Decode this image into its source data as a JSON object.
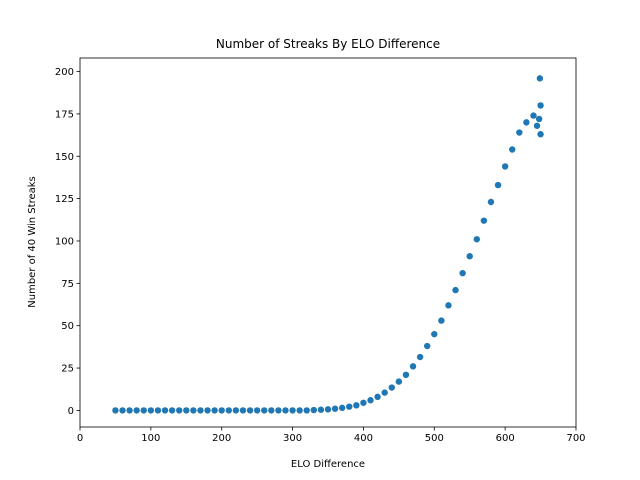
{
  "chart_data": {
    "type": "scatter",
    "title": "Number of Streaks By ELO Difference",
    "xlabel": "ELO Difference",
    "ylabel": "Number of 40 Win Streaks",
    "xlim": [
      0,
      700
    ],
    "ylim": [
      -9.8,
      208
    ],
    "xticks": [
      0,
      100,
      200,
      300,
      400,
      500,
      600,
      700
    ],
    "yticks": [
      0,
      25,
      50,
      75,
      100,
      125,
      150,
      175,
      200
    ],
    "grid": false,
    "legend": "none",
    "marker_color": "#1f77b4",
    "series": [
      {
        "x": [
          50,
          60,
          70,
          80,
          90,
          100,
          110,
          120,
          130,
          140,
          150,
          160,
          170,
          180,
          190,
          200,
          210,
          220,
          230,
          240,
          250,
          260,
          270,
          280,
          290,
          300,
          310,
          320,
          330,
          340,
          350,
          360,
          370,
          380,
          390,
          400,
          410,
          420,
          430,
          440,
          450,
          460,
          470,
          480,
          490,
          500,
          510,
          520,
          530,
          540,
          550,
          560,
          570,
          580,
          590,
          600,
          610,
          620,
          630,
          640,
          645,
          648,
          650,
          650,
          649
        ],
        "y": [
          0,
          0,
          0,
          0,
          0,
          0,
          0,
          0,
          0,
          0,
          0,
          0,
          0,
          0,
          0,
          0,
          0,
          0,
          0,
          0,
          0,
          0,
          0,
          0,
          0,
          0,
          0,
          0,
          0.2,
          0.4,
          0.6,
          1,
          1.5,
          2.2,
          3,
          4.5,
          6,
          8,
          10.5,
          13.5,
          17,
          21,
          26,
          31.5,
          38,
          45,
          53,
          62,
          71,
          81,
          91,
          101,
          112,
          123,
          133,
          144,
          154,
          164,
          170,
          174,
          168,
          172,
          163,
          180,
          196
        ]
      }
    ]
  }
}
